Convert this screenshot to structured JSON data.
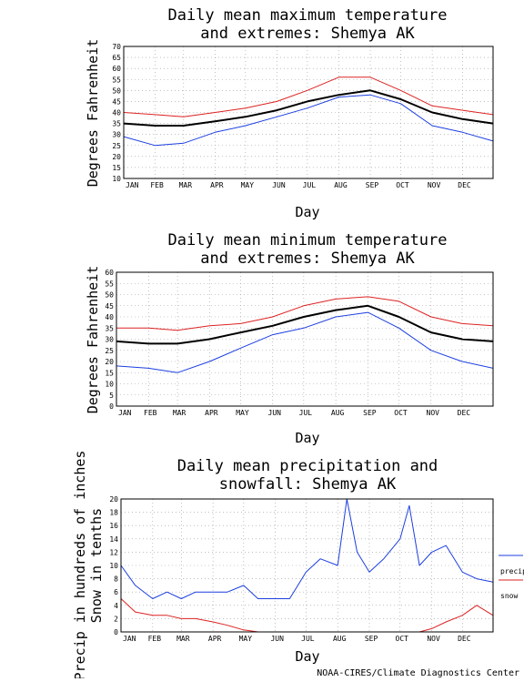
{
  "months": [
    "JAN",
    "FEB",
    "MAR",
    "APR",
    "MAY",
    "JUN",
    "JUL",
    "AUG",
    "SEP",
    "OCT",
    "NOV",
    "DEC"
  ],
  "credit": "NOAA-CIRES/Climate Diagnostics Center",
  "colors": {
    "mean": "#000000",
    "extreme": "#dd2222",
    "low": "#1c3fe0",
    "precip": "#1c3fe0",
    "snow": "#dd2222",
    "grid": "#999999"
  },
  "chart_data": [
    {
      "type": "line",
      "title": [
        "Daily mean maximum temperature",
        "and extremes: Shemya AK"
      ],
      "xlabel": "Day",
      "ylabel": "Degrees Fahrenheit",
      "ylim": [
        10,
        70
      ],
      "yticks": [
        10,
        15,
        20,
        25,
        30,
        35,
        40,
        45,
        50,
        55,
        60,
        65,
        70
      ],
      "grid": true,
      "x": [
        "Jan 1",
        "Feb 1",
        "Mar 1",
        "Apr 1",
        "May 1",
        "Jun 1",
        "Jul 1",
        "Aug 1",
        "Sep 1",
        "Oct 1",
        "Nov 1",
        "Dec 1",
        "Dec 31"
      ],
      "series": [
        {
          "values": [
            40,
            39,
            38,
            40,
            42,
            45,
            50,
            56,
            56,
            50,
            43,
            41,
            39
          ]
        },
        {
          "values": [
            35,
            34,
            34,
            36,
            38,
            41,
            45,
            48,
            50,
            46,
            40,
            37,
            35
          ]
        },
        {
          "values": [
            29,
            25,
            26,
            31,
            34,
            38,
            42,
            47,
            48,
            44,
            34,
            31,
            27
          ]
        }
      ]
    },
    {
      "type": "line",
      "title": [
        "Daily mean minimum temperature",
        "and extremes: Shemya AK"
      ],
      "xlabel": "Day",
      "ylabel": "Degrees Fahrenheit",
      "ylim": [
        0,
        60
      ],
      "yticks": [
        0,
        5,
        10,
        15,
        20,
        25,
        30,
        35,
        40,
        45,
        50,
        55,
        60
      ],
      "grid": true,
      "x": [
        "Jan 1",
        "Feb 1",
        "Mar 1",
        "Apr 1",
        "May 1",
        "Jun 1",
        "Jul 1",
        "Aug 1",
        "Sep 1",
        "Oct 1",
        "Nov 1",
        "Dec 1",
        "Dec 31"
      ],
      "series": [
        {
          "values": [
            35,
            35,
            34,
            36,
            37,
            40,
            45,
            48,
            49,
            47,
            40,
            37,
            36
          ]
        },
        {
          "values": [
            29,
            28,
            28,
            30,
            33,
            36,
            40,
            43,
            45,
            40,
            33,
            30,
            29
          ]
        },
        {
          "values": [
            18,
            17,
            15,
            20,
            26,
            32,
            35,
            40,
            42,
            35,
            25,
            20,
            17
          ]
        }
      ]
    },
    {
      "type": "line",
      "title": [
        "Daily mean precipitation and",
        "snowfall: Shemya AK"
      ],
      "xlabel": "Day",
      "ylabel": [
        "Precip in hundreds of inches",
        "Snow in tenths"
      ],
      "ylim": [
        0,
        20
      ],
      "yticks": [
        0,
        2,
        4,
        6,
        8,
        10,
        12,
        14,
        16,
        18,
        20
      ],
      "grid": true,
      "legend": "right",
      "x": [
        "Jan 1",
        "Jan 15",
        "Feb 1",
        "Feb 15",
        "Mar 1",
        "Mar 15",
        "Apr 1",
        "Apr 15",
        "May 1",
        "May 15",
        "Jun 1",
        "Jun 15",
        "Jul 1",
        "Jul 15",
        "Aug 1",
        "Aug 10",
        "Aug 20",
        "Sep 1",
        "Sep 15",
        "Oct 1",
        "Oct 10",
        "Oct 20",
        "Nov 1",
        "Nov 15",
        "Dec 1",
        "Dec 15",
        "Dec 31"
      ],
      "series": [
        {
          "name": "precip",
          "values": [
            10,
            7,
            5,
            6,
            5,
            6,
            6,
            6,
            7,
            5,
            5,
            5,
            9,
            11,
            10,
            20,
            12,
            9,
            11,
            14,
            19,
            10,
            12,
            13,
            9,
            8,
            7.5
          ]
        },
        {
          "name": "snow",
          "values": [
            5,
            3,
            2.5,
            2.5,
            2,
            2,
            1.5,
            1,
            0.3,
            0,
            0,
            0,
            0,
            0,
            0,
            0,
            0,
            0,
            0,
            0,
            0,
            0,
            0.5,
            1.5,
            2.5,
            4,
            2.5
          ]
        }
      ]
    }
  ]
}
